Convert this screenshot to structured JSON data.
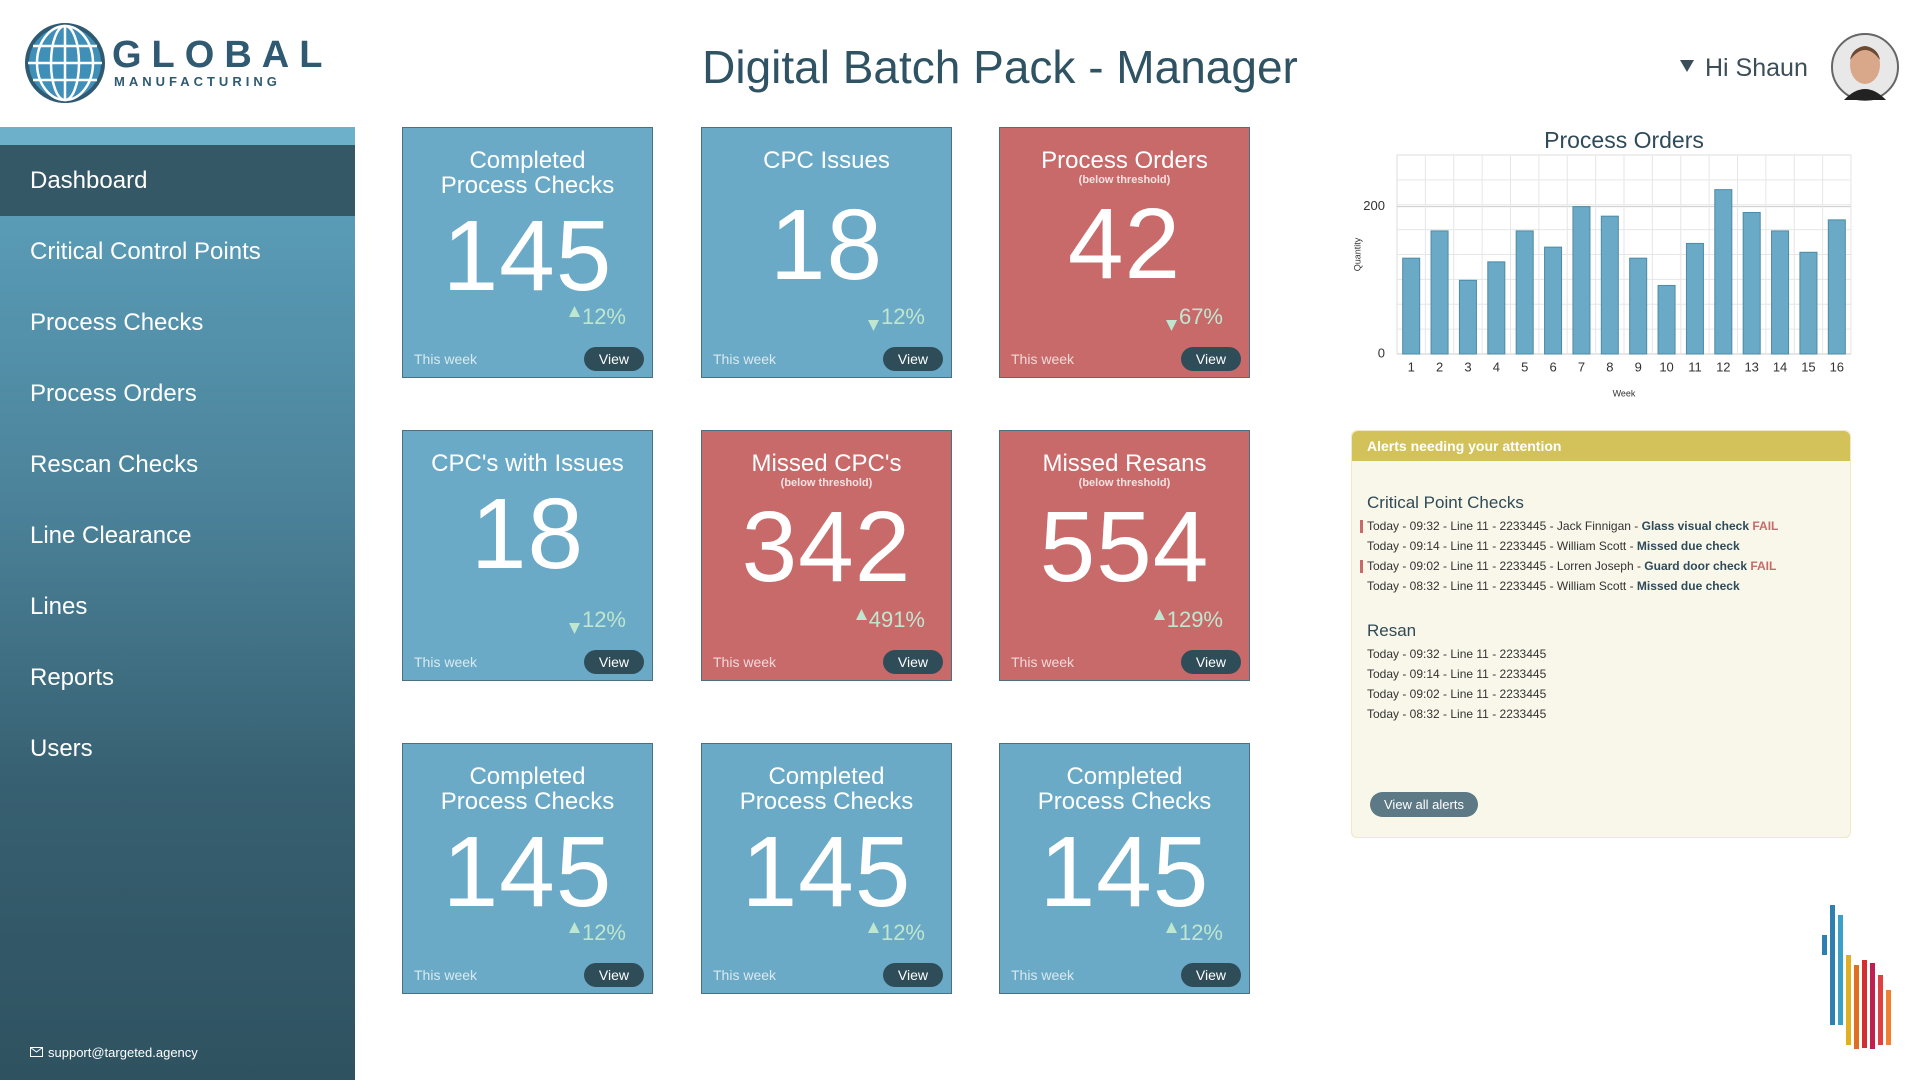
{
  "header": {
    "logo_title": "GLOBAL",
    "logo_subtitle": "MANUFACTURING",
    "title": "Digital Batch Pack - Manager",
    "greeting": "Hi Shaun"
  },
  "nav": {
    "items": [
      "Dashboard",
      "Critical Control Points",
      "Process Checks",
      "Process Orders",
      "Rescan Checks",
      "Line Clearance",
      "Lines",
      "Reports",
      "Users"
    ],
    "active": 0,
    "support": "support@targeted.agency"
  },
  "tiles": [
    {
      "title": "Completed Process Checks",
      "value": 145,
      "change": "12%",
      "trend": "up",
      "period": "This week",
      "action": "View",
      "color": "#6aaac6"
    },
    {
      "title": "CPC Issues",
      "value": 18,
      "change": "12%",
      "trend": "down",
      "period": "This week",
      "action": "View",
      "color": "#6aaac6"
    },
    {
      "title": "Process Orders",
      "subtitle": "(below threshold)",
      "value": 42,
      "change": "67%",
      "trend": "down",
      "period": "This week",
      "action": "View",
      "color": "#c96a6a"
    },
    {
      "title": "CPC's with Issues",
      "value": 18,
      "change": "12%",
      "trend": "down",
      "period": "This week",
      "action": "View",
      "color": "#6aaac6"
    },
    {
      "title": "Missed CPC's",
      "subtitle": "(below threshold)",
      "value": 342,
      "change": "491%",
      "trend": "up",
      "period": "This week",
      "action": "View",
      "color": "#c96a6a"
    },
    {
      "title": "Missed Resans",
      "subtitle": "(below threshold)",
      "value": 554,
      "change": "129%",
      "trend": "up",
      "period": "This week",
      "action": "View",
      "color": "#c96a6a"
    },
    {
      "title": "Completed Process Checks",
      "value": 145,
      "change": "12%",
      "trend": "up",
      "period": "This week",
      "action": "View",
      "color": "#6aaac6"
    },
    {
      "title": "Completed Process Checks",
      "value": 145,
      "change": "12%",
      "trend": "up",
      "period": "This week",
      "action": "View",
      "color": "#6aaac6"
    },
    {
      "title": "Completed Process Checks",
      "value": 145,
      "change": "12%",
      "trend": "up",
      "period": "This week",
      "action": "View",
      "color": "#6aaac6"
    }
  ],
  "chart_data": {
    "type": "bar",
    "title": "Process Orders",
    "x_label": "Week",
    "y_label": "Quantity",
    "categories": [
      "1",
      "2",
      "3",
      "4",
      "5",
      "6",
      "7",
      "8",
      "9",
      "10",
      "11",
      "12",
      "13",
      "14",
      "15",
      "16"
    ],
    "values": [
      130,
      167,
      100,
      125,
      167,
      145,
      200,
      187,
      130,
      93,
      150,
      223,
      192,
      167,
      138,
      182
    ],
    "color": "#6aaac6",
    "ylim": [
      0,
      270
    ],
    "yticks": [
      0,
      200
    ],
    "grid": true
  },
  "alerts": {
    "title": "Alerts needing your attention",
    "sections": [
      {
        "heading": "Critical Point Checks",
        "items": [
          {
            "text": "Today - 09:32 - Line 11 - 2233445 - Jack Finnigan - ",
            "check": "Glass visual check",
            "status": "FAIL"
          },
          {
            "text": "Today - 09:14 - Line 11 - 2233445 - William Scott - ",
            "check": "Missed due check"
          },
          {
            "text": "Today - 09:02 - Line 11 - 2233445 - Lorren Joseph - ",
            "check": "Guard door check",
            "status": "FAIL"
          },
          {
            "text": "Today - 08:32 - Line 11 - 2233445 - William Scott - ",
            "check": "Missed due check"
          }
        ]
      },
      {
        "heading": "Resan",
        "items": [
          {
            "text": "Today - 09:32 - Line 11 - 2233445"
          },
          {
            "text": "Today - 09:14 - Line 11 - 2233445"
          },
          {
            "text": "Today - 09:02 - Line 11 - 2233445"
          },
          {
            "text": "Today - 08:32 - Line 11 - 2233445"
          }
        ]
      }
    ],
    "action": "View all alerts"
  }
}
